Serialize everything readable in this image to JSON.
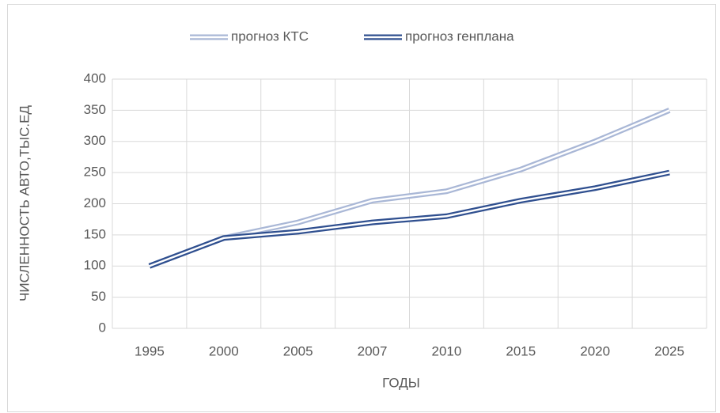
{
  "chart_data": {
    "type": "line",
    "categories": [
      "1995",
      "2000",
      "2005",
      "2007",
      "2010",
      "2015",
      "2020",
      "2025"
    ],
    "series": [
      {
        "name": "прогноз КТС",
        "color": "#a9b7d6",
        "values": [
          100,
          145,
          170,
          205,
          220,
          255,
          300,
          350
        ]
      },
      {
        "name": "прогноз генплана",
        "color": "#2f4f8f",
        "values": [
          100,
          145,
          155,
          170,
          180,
          205,
          225,
          250
        ]
      }
    ],
    "y_label": "ЧИСЛЕННОСТЬ АВТО,ТЫС.ЕД",
    "x_label": "ГОДЫ",
    "ylim": [
      0,
      400
    ],
    "yticks": [
      0,
      50,
      100,
      150,
      200,
      250,
      300,
      350,
      400
    ],
    "grid": true,
    "legend": "top"
  }
}
